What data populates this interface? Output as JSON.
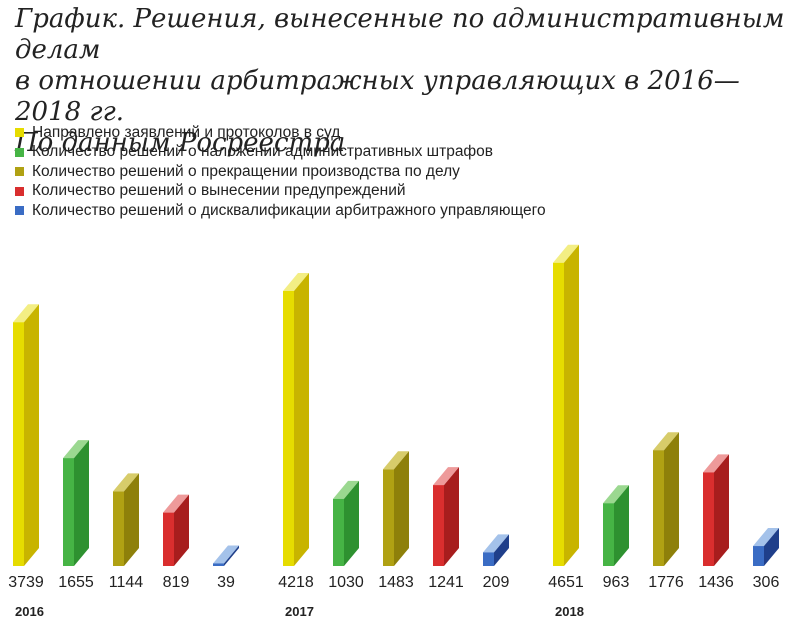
{
  "title_lines": [
    "График. Решения, вынесенные по административным делам",
    "в отношении арбитражных управляющих в 2016—2018 гг.",
    "По данным Росреестра"
  ],
  "colors": {
    "yellow": {
      "front": "#e6dc00",
      "side": "#c8b400",
      "top": "#f3ee84"
    },
    "green": {
      "front": "#46b445",
      "side": "#2e9130",
      "top": "#9bd890"
    },
    "olive": {
      "front": "#b0a113",
      "side": "#8e800a",
      "top": "#d7cc6a"
    },
    "red": {
      "front": "#d92e2e",
      "side": "#a71d1d",
      "top": "#ee9a9a"
    },
    "blue": {
      "front": "#3a6cc4",
      "side": "#1f3f8a",
      "top": "#a4c2ea"
    }
  },
  "chart_data": {
    "type": "bar",
    "title": "График. Решения, вынесенные по административным делам в отношении арбитражных управляющих в 2016—2018 гг. По данным Росреестра",
    "categories": [
      "2016",
      "2017",
      "2018"
    ],
    "series": [
      {
        "name": "Направлено заявлений и протоколов в суд",
        "color": "yellow",
        "values": [
          3739,
          4218,
          4651
        ]
      },
      {
        "name": "Количество решений о наложении административных штрафов",
        "color": "green",
        "values": [
          1655,
          1030,
          963
        ]
      },
      {
        "name": "Количество решений о прекращении производства по делу",
        "color": "olive",
        "values": [
          1144,
          1483,
          1776
        ]
      },
      {
        "name": "Количество решений о вынесении предупреждений",
        "color": "red",
        "values": [
          819,
          1241,
          1436
        ]
      },
      {
        "name": "Количество решений о дисквалификации арбитражного управляющего",
        "color": "blue",
        "values": [
          39,
          209,
          306
        ]
      }
    ],
    "legend_position": "top-left",
    "grid": false,
    "ylim": [
      0,
      5000
    ]
  }
}
